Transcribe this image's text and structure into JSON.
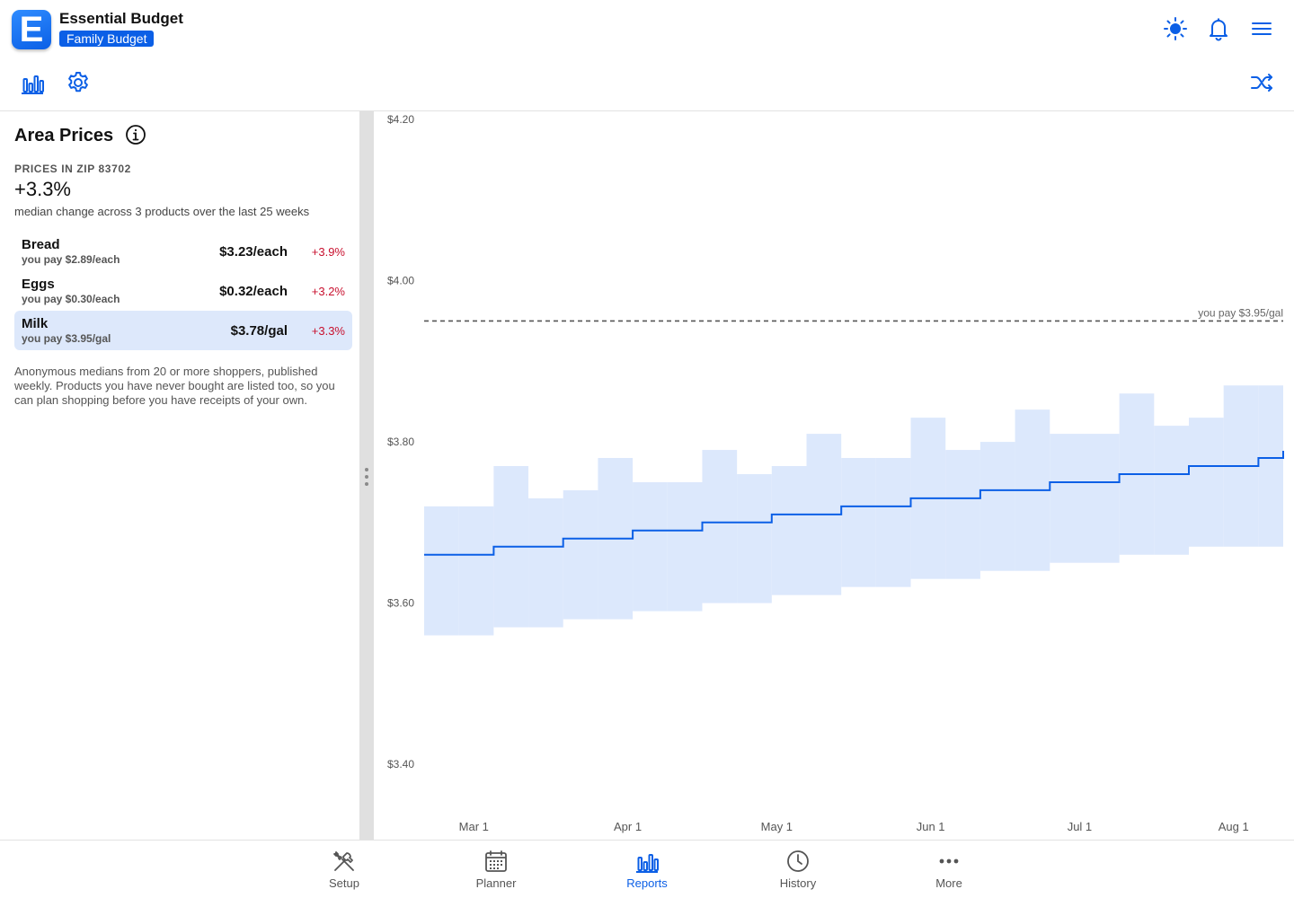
{
  "app": {
    "title": "Essential Budget",
    "budget_name": "Family Budget",
    "logo_letter": "E"
  },
  "header_icons": [
    "sun-icon",
    "bell-icon",
    "menu-icon",
    "bar-chart-icon",
    "gear-icon",
    "shuffle-icon"
  ],
  "accent_color": "#0b5fe6",
  "panel": {
    "title": "Area Prices",
    "zip_label": "PRICES IN ZIP 83702",
    "median_change": "+3.3%",
    "median_caption": "median change across 3 products over the last 25 weeks",
    "products": [
      {
        "name": "Bread",
        "you_pay": "you pay $2.89/each",
        "price": "$3.23/each",
        "change": "+3.9%",
        "selected": false
      },
      {
        "name": "Eggs",
        "you_pay": "you pay $0.30/each",
        "price": "$0.32/each",
        "change": "+3.2%",
        "selected": false
      },
      {
        "name": "Milk",
        "you_pay": "you pay $3.95/gal",
        "price": "$3.78/gal",
        "change": "+3.3%",
        "selected": true
      }
    ],
    "footnote": "Anonymous medians from 20 or more shoppers, published weekly. Products you have never bought are listed too, so you can plan shopping before you have receipts of your own."
  },
  "chart_data": {
    "type": "area",
    "product": "Milk",
    "y_ticks": [
      "$3.40",
      "$3.60",
      "$3.80",
      "$4.00",
      "$4.20"
    ],
    "ylim": [
      3.33,
      4.21
    ],
    "x_ticks": [
      "Mar 1",
      "Apr 1",
      "May 1",
      "Jun 1",
      "Jul 1",
      "Aug 1"
    ],
    "xlim": [
      "2024-02-20",
      "2024-08-11"
    ],
    "x_tick_dates": [
      "2024-03-01",
      "2024-04-01",
      "2024-05-01",
      "2024-06-01",
      "2024-07-01",
      "2024-08-01"
    ],
    "week_starts": [
      "2024-02-20",
      "2024-02-27",
      "2024-03-05",
      "2024-03-12",
      "2024-03-19",
      "2024-03-26",
      "2024-04-02",
      "2024-04-09",
      "2024-04-16",
      "2024-04-23",
      "2024-04-30",
      "2024-05-07",
      "2024-05-14",
      "2024-05-21",
      "2024-05-28",
      "2024-06-04",
      "2024-06-11",
      "2024-06-18",
      "2024-06-25",
      "2024-07-02",
      "2024-07-09",
      "2024-07-16",
      "2024-07-23",
      "2024-07-30",
      "2024-08-06"
    ],
    "median": [
      3.66,
      3.66,
      3.67,
      3.67,
      3.68,
      3.68,
      3.69,
      3.69,
      3.7,
      3.7,
      3.71,
      3.71,
      3.72,
      3.72,
      3.73,
      3.73,
      3.74,
      3.74,
      3.75,
      3.75,
      3.76,
      3.76,
      3.77,
      3.77,
      3.78
    ],
    "band_low": [
      3.56,
      3.56,
      3.57,
      3.57,
      3.58,
      3.58,
      3.59,
      3.59,
      3.6,
      3.6,
      3.61,
      3.61,
      3.62,
      3.62,
      3.63,
      3.63,
      3.64,
      3.64,
      3.65,
      3.65,
      3.66,
      3.66,
      3.67,
      3.67,
      3.67
    ],
    "band_high": [
      3.72,
      3.72,
      3.77,
      3.73,
      3.74,
      3.78,
      3.75,
      3.75,
      3.79,
      3.76,
      3.77,
      3.81,
      3.78,
      3.78,
      3.83,
      3.79,
      3.8,
      3.84,
      3.81,
      3.81,
      3.86,
      3.82,
      3.83,
      3.87,
      3.87
    ],
    "reference": {
      "value": 3.95,
      "label": "you pay $3.95/gal"
    },
    "grid": false
  },
  "nav": {
    "items": [
      {
        "label": "Setup",
        "icon": "tools-icon",
        "active": false
      },
      {
        "label": "Planner",
        "icon": "calendar-icon",
        "active": false
      },
      {
        "label": "Reports",
        "icon": "bar-chart-icon",
        "active": true
      },
      {
        "label": "History",
        "icon": "clock-icon",
        "active": false
      },
      {
        "label": "More",
        "icon": "more-icon",
        "active": false
      }
    ]
  }
}
